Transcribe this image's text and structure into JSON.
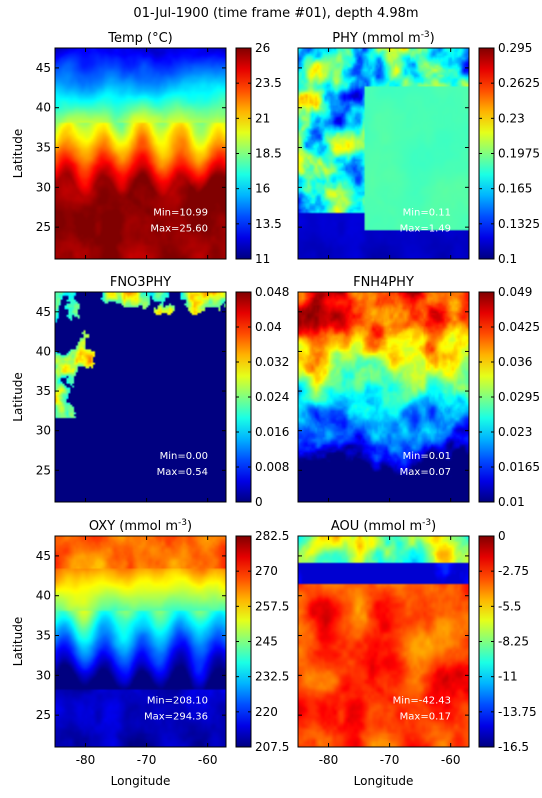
{
  "figure_title": "01-Jul-1900 (time frame #01), depth 4.98m",
  "xlabel": "Longitude",
  "ylabel": "Latitude",
  "chart_data": [
    {
      "type": "heatmap",
      "title": "Temp (°C)",
      "title_main": "Temp (°C)",
      "title_sup": "",
      "title_end": "",
      "xlabel": "",
      "ylabel": "Latitude",
      "xlim": [
        -85,
        -57
      ],
      "ylim": [
        21,
        47.5
      ],
      "xticks": [
        -80,
        -70,
        -60
      ],
      "yticks": [
        25,
        30,
        35,
        40,
        45
      ],
      "colorbar": {
        "ticks": [
          "26",
          "23.5",
          "21",
          "18.5",
          "16",
          "13.5",
          "11"
        ],
        "min": 11,
        "max": 26
      },
      "stats": {
        "min": "Min=10.99",
        "max": "Max=25.60"
      },
      "pattern": "temp",
      "colormap": "jet"
    },
    {
      "type": "heatmap",
      "title": "PHY (mmol m-3)",
      "title_main": "PHY (mmol m",
      "title_sup": "-3",
      "title_end": ")",
      "xlabel": "",
      "ylabel": "",
      "xlim": [
        -85,
        -57
      ],
      "ylim": [
        21,
        47.5
      ],
      "xticks": [
        -80,
        -70,
        -60
      ],
      "yticks": [
        25,
        30,
        35,
        40,
        45
      ],
      "colorbar": {
        "ticks": [
          "0.295",
          "0.2625",
          "0.23",
          "0.1975",
          "0.165",
          "0.1325",
          "0.1"
        ],
        "min": 0.1,
        "max": 0.295
      },
      "stats": {
        "min": "Min=0.11",
        "max": "Max=1.49"
      },
      "pattern": "phy",
      "colormap": "jet"
    },
    {
      "type": "heatmap",
      "title": "FNO3PHY",
      "title_main": "FNO3PHY",
      "title_sup": "",
      "title_end": "",
      "xlabel": "",
      "ylabel": "Latitude",
      "xlim": [
        -85,
        -57
      ],
      "ylim": [
        21,
        47.5
      ],
      "xticks": [
        -80,
        -70,
        -60
      ],
      "yticks": [
        25,
        30,
        35,
        40,
        45
      ],
      "colorbar": {
        "ticks": [
          "0.048",
          "0.04",
          "0.032",
          "0.024",
          "0.016",
          "0.008",
          "0"
        ],
        "min": 0,
        "max": 0.048
      },
      "stats": {
        "min": "Min=0.00",
        "max": "Max=0.54"
      },
      "pattern": "fno3",
      "colormap": "jet"
    },
    {
      "type": "heatmap",
      "title": "FNH4PHY",
      "title_main": "FNH4PHY",
      "title_sup": "",
      "title_end": "",
      "xlabel": "",
      "ylabel": "",
      "xlim": [
        -85,
        -57
      ],
      "ylim": [
        21,
        47.5
      ],
      "xticks": [
        -80,
        -70,
        -60
      ],
      "yticks": [
        25,
        30,
        35,
        40,
        45
      ],
      "colorbar": {
        "ticks": [
          "0.049",
          "0.0425",
          "0.036",
          "0.0295",
          "0.023",
          "0.0165",
          "0.01"
        ],
        "min": 0.01,
        "max": 0.049
      },
      "stats": {
        "min": "Min=0.01",
        "max": "Max=0.07"
      },
      "pattern": "fnh4",
      "colormap": "jet"
    },
    {
      "type": "heatmap",
      "title": "OXY (mmol m-3)",
      "title_main": "OXY (mmol m",
      "title_sup": "-3",
      "title_end": ")",
      "xlabel": "Longitude",
      "ylabel": "Latitude",
      "xlim": [
        -85,
        -57
      ],
      "ylim": [
        21,
        47.5
      ],
      "xticks": [
        -80,
        -70,
        -60
      ],
      "yticks": [
        25,
        30,
        35,
        40,
        45
      ],
      "colorbar": {
        "ticks": [
          "282.5",
          "270",
          "257.5",
          "245",
          "232.5",
          "220",
          "207.5"
        ],
        "min": 207.5,
        "max": 282.5
      },
      "stats": {
        "min": "Min=208.10",
        "max": "Max=294.36"
      },
      "pattern": "oxy",
      "colormap": "jet"
    },
    {
      "type": "heatmap",
      "title": "AOU (mmol m-3)",
      "title_main": "AOU (mmol m",
      "title_sup": "-3",
      "title_end": ")",
      "xlabel": "Longitude",
      "ylabel": "",
      "xlim": [
        -85,
        -57
      ],
      "ylim": [
        21,
        47.5
      ],
      "xticks": [
        -80,
        -70,
        -60
      ],
      "yticks": [
        25,
        30,
        35,
        40,
        45
      ],
      "colorbar": {
        "ticks": [
          "0",
          "-2.75",
          "-5.5",
          "-8.25",
          "-11",
          "-13.75",
          "-16.5"
        ],
        "min": -16.5,
        "max": 0
      },
      "stats": {
        "min": "Min=-42.43",
        "max": "Max=0.17"
      },
      "pattern": "aou",
      "colormap": "jet"
    }
  ]
}
